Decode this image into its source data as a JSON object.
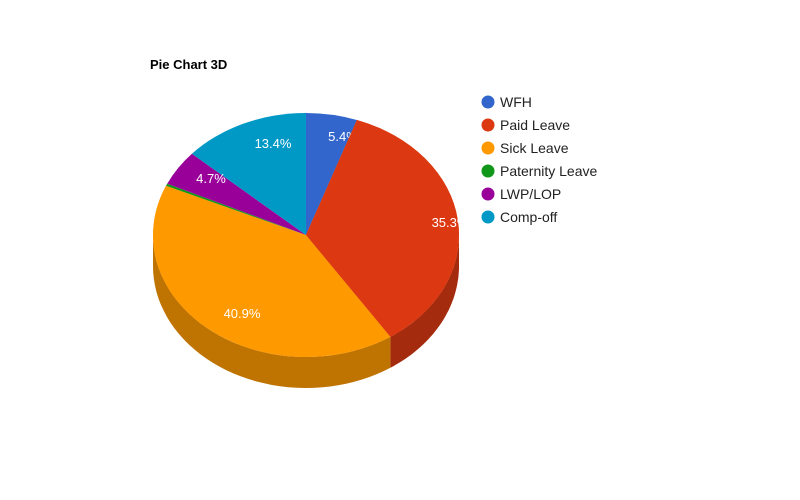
{
  "chart_data": {
    "type": "pie",
    "title": "Pie Chart 3D",
    "is3D": true,
    "legend_position": "right",
    "slices": [
      {
        "name": "WFH",
        "value": 5.4,
        "label": "5.4%",
        "color": "#3366cc",
        "side_color": "#264d99"
      },
      {
        "name": "Paid Leave",
        "value": 35.3,
        "label": "35.3%",
        "color": "#dc3912",
        "side_color": "#a52b0e"
      },
      {
        "name": "Sick Leave",
        "value": 40.9,
        "label": "40.9%",
        "color": "#ff9900",
        "side_color": "#bf7300"
      },
      {
        "name": "Paternity Leave",
        "value": 0.3,
        "label": "",
        "color": "#109618",
        "side_color": "#0c7112"
      },
      {
        "name": "LWP/LOP",
        "value": 4.7,
        "label": "4.7%",
        "color": "#990099",
        "side_color": "#730073"
      },
      {
        "name": "Comp-off",
        "value": 13.4,
        "label": "13.4%",
        "color": "#0099c6",
        "side_color": "#007395"
      }
    ]
  }
}
